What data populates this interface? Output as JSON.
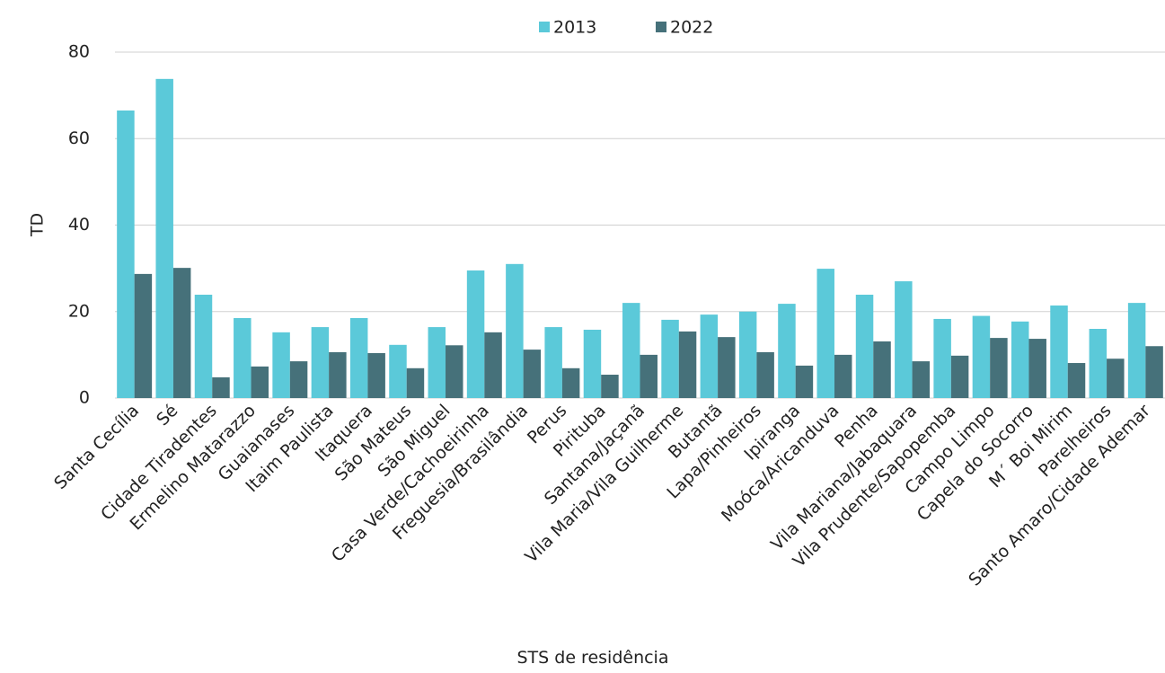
{
  "chart_data": {
    "type": "bar",
    "categories": [
      "Santa Cecília",
      "Sé",
      "Cidade Tiradentes",
      "Ermelino Matarazzo",
      "Guaianases",
      "Itaim Paulista",
      "Itaquera",
      "São Mateus",
      "São Miguel",
      "Casa Verde/Cachoeirinha",
      "Freguesia/Brasilândia",
      "Perus",
      "Pirituba",
      "Santana/Jaçanã",
      "Vila Maria/Vila Guilherme",
      "Butantã",
      "Lapa/Pinheiros",
      "Ipiranga",
      "Moóca/Aricanduva",
      "Penha",
      "Vila Mariana/Jabaquara",
      "Vila Prudente/Sapopemba",
      "Campo Limpo",
      "Capela do Socorro",
      "M´ Boi Mirim",
      "Parelheiros",
      "Santo Amaro/Cidade Ademar"
    ],
    "series": [
      {
        "name": "2013",
        "color": "#5bc9d9",
        "values": [
          66.5,
          73.8,
          23.9,
          18.5,
          15.2,
          16.4,
          18.5,
          12.3,
          16.4,
          29.5,
          31,
          16.4,
          15.8,
          22,
          18.1,
          19.3,
          20,
          21.8,
          29.9,
          23.9,
          27,
          18.3,
          19,
          17.7,
          21.4,
          16,
          22
        ]
      },
      {
        "name": "2022",
        "color": "#46717a",
        "values": [
          28.7,
          30.1,
          4.8,
          7.3,
          8.5,
          10.6,
          10.4,
          6.9,
          12.2,
          15.2,
          11.2,
          6.9,
          5.4,
          10,
          15.4,
          14.1,
          10.6,
          7.5,
          10,
          13.1,
          8.5,
          9.8,
          13.9,
          13.7,
          8.1,
          9.1,
          12
        ]
      }
    ],
    "ylabel": "TD",
    "xlabel": "STS de residência",
    "ylim": [
      0,
      80
    ],
    "yticks": [
      0,
      20,
      40,
      60,
      80
    ],
    "grid": true
  }
}
